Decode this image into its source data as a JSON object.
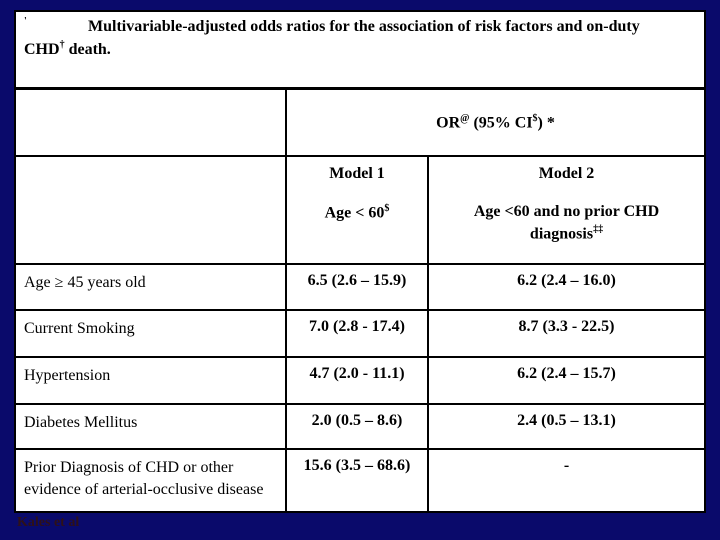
{
  "title": {
    "mark": "'",
    "line1": "Multivariable-adjusted odds ratios for the association of risk factors and on-duty",
    "line2_pre": "CHD",
    "line2_sup": "†",
    "line2_post": " death."
  },
  "header": {
    "or_pre": "OR",
    "or_sup": "@",
    "or_mid": " (95% CI",
    "or_sup2": "$",
    "or_post": ") *"
  },
  "models": {
    "model1": {
      "name": "Model 1",
      "sub_pre": "Age < 60",
      "sub_sup": "$"
    },
    "model2": {
      "name": "Model 2",
      "sub_pre": "Age <60 and no prior CHD diagnosis",
      "sub_sup": "‡‡"
    }
  },
  "table": {
    "rows": [
      {
        "label": "Age ≥ 45 years old",
        "model1": "6.5 (2.6 – 15.9)",
        "model2": "6.2 (2.4 – 16.0)"
      },
      {
        "label": "Current Smoking",
        "model1": "7.0 (2.8 - 17.4)",
        "model2": "8.7 (3.3 - 22.5)"
      },
      {
        "label": "Hypertension",
        "model1": "4.7 (2.0 - 11.1)",
        "model2": "6.2 (2.4 – 15.7)"
      },
      {
        "label": "Diabetes Mellitus",
        "model1": "2.0 (0.5 – 8.6)",
        "model2": "2.4 (0.5 – 13.1)"
      },
      {
        "label": "Prior Diagnosis of CHD or other evidence of arterial-occlusive disease",
        "model1": "15.6 (3.5 – 68.6)",
        "model2": "-"
      }
    ]
  },
  "caption": "Kales et al",
  "colors": {
    "background": "#0a0a6b",
    "table_background": "#ffffff",
    "border": "#000000",
    "caption_text": "#2e1118"
  }
}
